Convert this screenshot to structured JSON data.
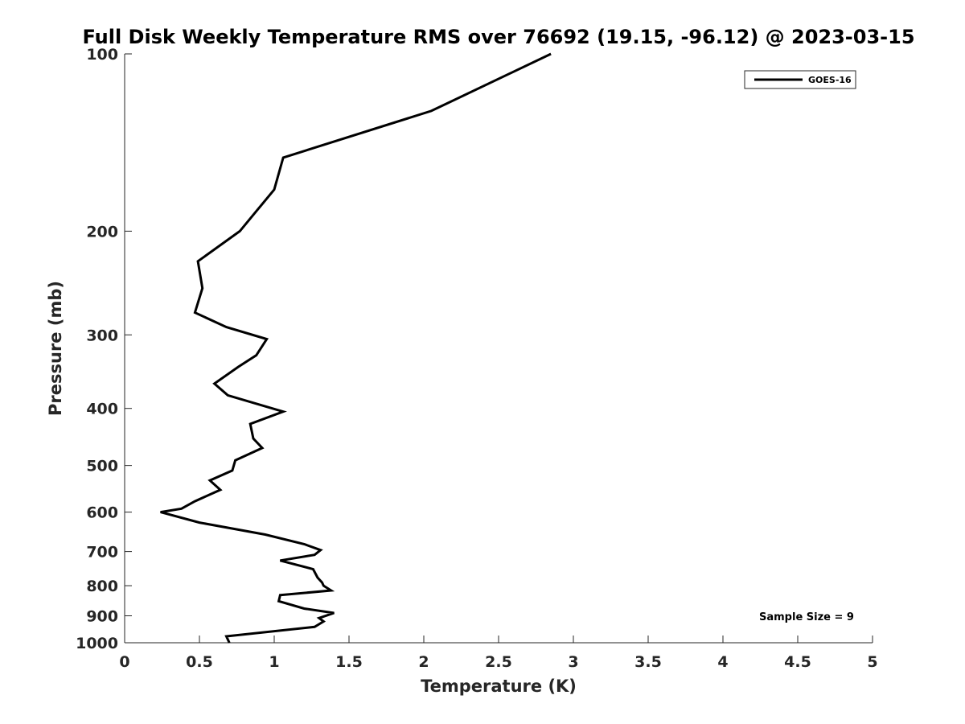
{
  "chart_data": {
    "type": "line",
    "title": "Full Disk Weekly Temperature RMS over 76692 (19.15, -96.12) @ 2023-03-15",
    "xlabel": "Temperature (K)",
    "ylabel": "Pressure (mb)",
    "xlim": [
      0,
      5
    ],
    "ylim": [
      1000,
      100
    ],
    "yscale": "log",
    "y_reversed": true,
    "grid": false,
    "legend_position": "top-right",
    "x_ticks": [
      "0",
      "0.5",
      "1",
      "1.5",
      "2",
      "2.5",
      "3",
      "3.5",
      "4",
      "4.5",
      "5"
    ],
    "x_tick_values": [
      0,
      0.5,
      1,
      1.5,
      2,
      2.5,
      3,
      3.5,
      4,
      4.5,
      5
    ],
    "y_ticks": [
      "100",
      "200",
      "300",
      "400",
      "500",
      "600",
      "700",
      "800",
      "900",
      "1000"
    ],
    "y_tick_values": [
      100,
      200,
      300,
      400,
      500,
      600,
      700,
      800,
      900,
      1000
    ],
    "annotation": "Sample Size = 9",
    "series": [
      {
        "name": "GOES-16",
        "color": "#000000",
        "points": [
          [
            2.85,
            100
          ],
          [
            2.05,
            125
          ],
          [
            1.06,
            150
          ],
          [
            1.0,
            170
          ],
          [
            0.88,
            185
          ],
          [
            0.77,
            200
          ],
          [
            0.49,
            225
          ],
          [
            0.52,
            250
          ],
          [
            0.47,
            275
          ],
          [
            0.68,
            291
          ],
          [
            0.95,
            305
          ],
          [
            0.88,
            325
          ],
          [
            0.76,
            340
          ],
          [
            0.6,
            363
          ],
          [
            0.69,
            380
          ],
          [
            1.06,
            405
          ],
          [
            0.84,
            425
          ],
          [
            0.86,
            450
          ],
          [
            0.92,
            467
          ],
          [
            0.74,
            490
          ],
          [
            0.72,
            510
          ],
          [
            0.57,
            530
          ],
          [
            0.64,
            550
          ],
          [
            0.47,
            575
          ],
          [
            0.38,
            592
          ],
          [
            0.24,
            600
          ],
          [
            0.5,
            625
          ],
          [
            0.94,
            655
          ],
          [
            1.2,
            680
          ],
          [
            1.31,
            696
          ],
          [
            1.27,
            709
          ],
          [
            1.04,
            725
          ],
          [
            1.26,
            750
          ],
          [
            1.29,
            775
          ],
          [
            1.32,
            790
          ],
          [
            1.33,
            800
          ],
          [
            1.38,
            815
          ],
          [
            1.04,
            830
          ],
          [
            1.03,
            850
          ],
          [
            1.2,
            875
          ],
          [
            1.4,
            890
          ],
          [
            1.3,
            908
          ],
          [
            1.33,
            920
          ],
          [
            1.27,
            940
          ],
          [
            0.68,
            975
          ],
          [
            0.7,
            1000
          ]
        ]
      }
    ]
  }
}
